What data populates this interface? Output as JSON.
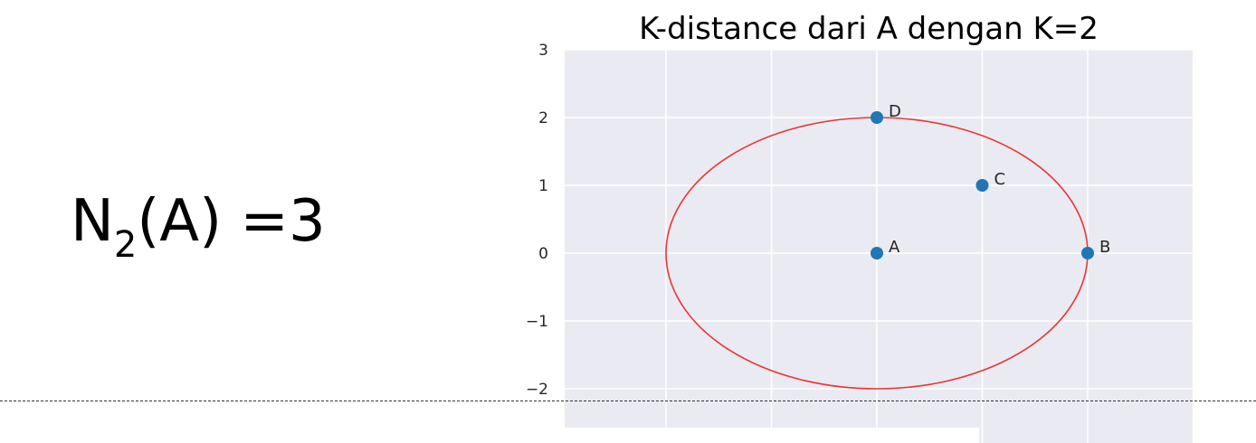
{
  "formula": {
    "base": "N",
    "subscript": "2",
    "rest": "(A) =3"
  },
  "chart_data": {
    "type": "scatter",
    "title": "K-distance dari A dengan K=2",
    "xlabel": "",
    "ylabel": "",
    "xlim": [
      -2,
      3
    ],
    "ylim": [
      -2.5,
      3
    ],
    "y_ticks": [
      3,
      2,
      1,
      0,
      -1,
      -2
    ],
    "y_tick_labels": [
      "3",
      "2",
      "1",
      "0",
      "−1",
      "−2"
    ],
    "grid": true,
    "points": [
      {
        "label": "A",
        "x": 0,
        "y": 0
      },
      {
        "label": "B",
        "x": 2,
        "y": 0
      },
      {
        "label": "C",
        "x": 1,
        "y": 1
      },
      {
        "label": "D",
        "x": 0,
        "y": 2
      }
    ],
    "circle": {
      "center_x": 0,
      "center_y": 0,
      "radius": 2,
      "color": "#ee3333"
    },
    "point_color": "#1f77b4",
    "background_color": "#eaeaf2"
  }
}
